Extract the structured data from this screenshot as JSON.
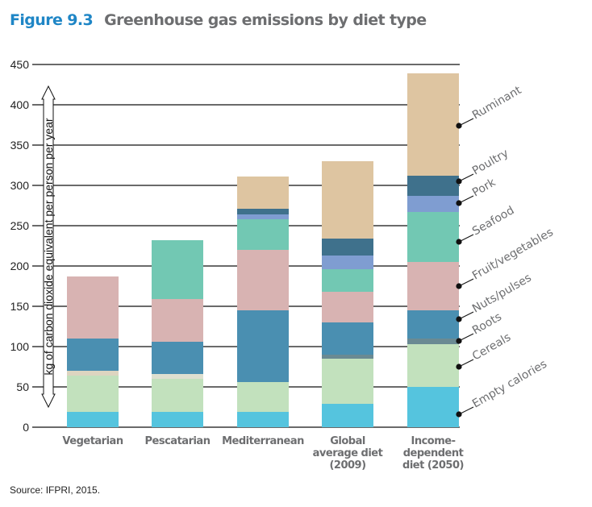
{
  "title": {
    "figure_number": "Figure 9.3",
    "text": "Greenhouse gas emissions by diet type"
  },
  "source": "Source: IFPRI, 2015.",
  "chart_data": {
    "type": "bar",
    "stacked": true,
    "title": "Greenhouse gas emissions by diet type",
    "xlabel": "",
    "ylabel": "kg of carbon dioxide equivalent per person per year",
    "ylim": [
      0,
      450
    ],
    "yticks": [
      0,
      50,
      100,
      150,
      200,
      250,
      300,
      350,
      400,
      450
    ],
    "grid": true,
    "legend_placement": "right (annotated on last bar)",
    "categories": [
      [
        "Vegetarian"
      ],
      [
        "Pescatarian"
      ],
      [
        "Mediterranean"
      ],
      [
        "Global",
        "average diet",
        "(2009)"
      ],
      [
        "Income-",
        "dependent",
        "diet (2050)"
      ]
    ],
    "category_names": [
      "Vegetarian",
      "Pescatarian",
      "Mediterranean",
      "Global average diet (2009)",
      "Income-dependent diet (2050)"
    ],
    "series": [
      {
        "name": "Empty calories",
        "color": "#55c4de",
        "values": [
          19,
          19,
          19,
          29,
          50
        ]
      },
      {
        "name": "Cereals",
        "color": "#c2e1bd",
        "values": [
          45,
          41,
          37,
          56,
          53
        ]
      },
      {
        "name": "Roots",
        "color": "#6a8a93",
        "values": [
          6,
          6,
          0,
          5,
          7
        ],
        "bar_colors": [
          "#ddd5c0",
          "#dde0d0",
          "#6a8a93",
          "#6a8a93",
          "#6a8a93"
        ]
      },
      {
        "name": "Nuts/pulses",
        "color": "#4a8fb1",
        "values": [
          40,
          40,
          89,
          40,
          35
        ]
      },
      {
        "name": "Fruit/vegetables",
        "color": "#d8b3b2",
        "values": [
          77,
          53,
          75,
          38,
          60
        ]
      },
      {
        "name": "Seafood",
        "color": "#72c8b3",
        "values": [
          0,
          73,
          38,
          28,
          62
        ]
      },
      {
        "name": "Pork",
        "color": "#7f9dd1",
        "values": [
          0,
          0,
          6,
          17,
          20
        ]
      },
      {
        "name": "Poultry",
        "color": "#3f718c",
        "values": [
          0,
          0,
          7,
          21,
          25
        ]
      },
      {
        "name": "Ruminant",
        "color": "#dec5a1",
        "values": [
          0,
          0,
          40,
          96,
          127
        ]
      }
    ],
    "totals": [
      187,
      232,
      311,
      330,
      439
    ]
  }
}
